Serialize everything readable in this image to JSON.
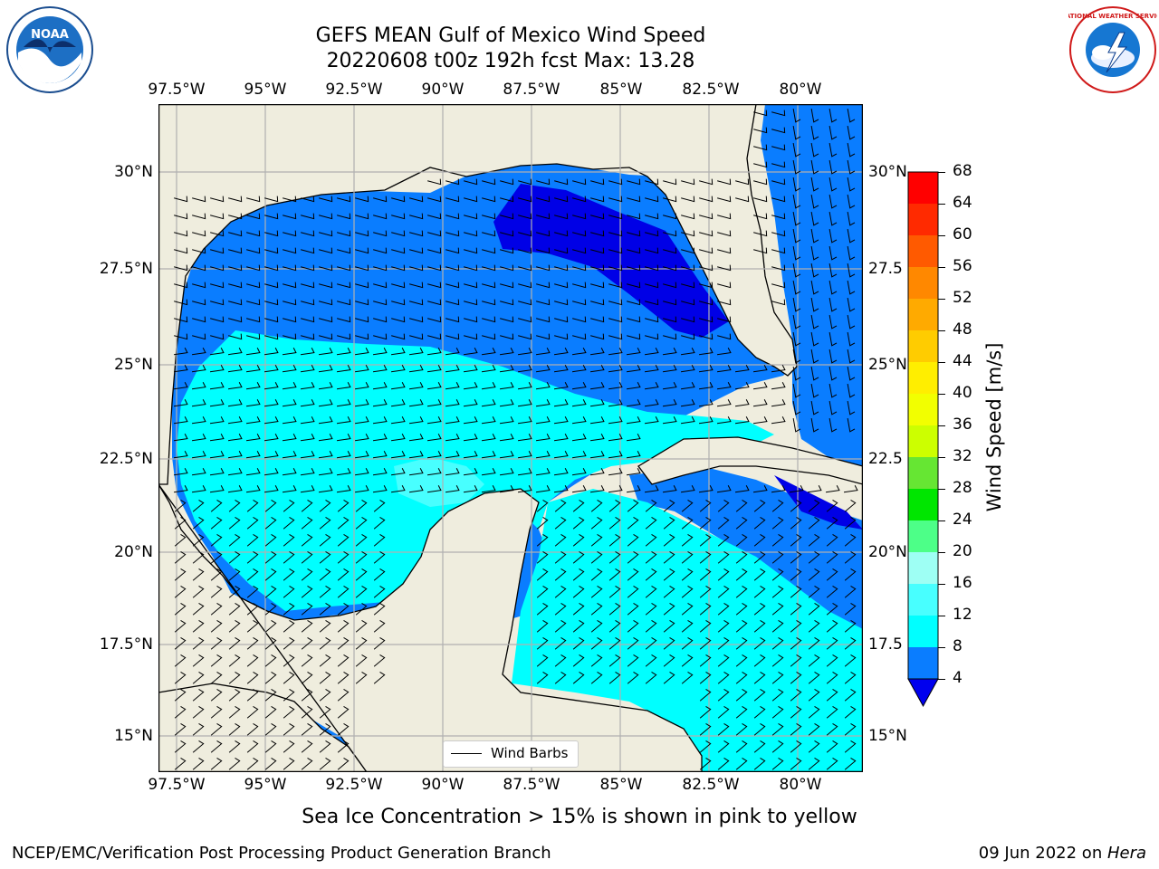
{
  "title": {
    "line1": "GEFS MEAN Gulf of Mexico Wind Speed",
    "line2": "20220608 t00z 192h fcst   Max: 13.28"
  },
  "logos": {
    "left_icon": "noaa-logo-icon",
    "left_text": "NOAA",
    "right_icon": "national-weather-service-logo-icon",
    "right_text": "NATIONAL WEATHER SERVICE"
  },
  "map": {
    "lon_ticks": [
      "97.5°W",
      "95°W",
      "92.5°W",
      "90°W",
      "87.5°W",
      "85°W",
      "82.5°W",
      "80°W"
    ],
    "lat_ticks_left": [
      "30°N",
      "27.5°N",
      "25°N",
      "22.5°N",
      "20°N",
      "17.5°N",
      "15°N"
    ],
    "lat_ticks_right": [
      "30°N",
      "27.5",
      "25°N",
      "22.5",
      "20°N",
      "17.5",
      "15°N"
    ],
    "land_color": "#efedde",
    "ocean_colors": {
      "band_4_8": "#0a7dff",
      "band_8_12": "#00ffff",
      "band_12_16": "#48ffff",
      "band_lt_4": "#0000e6",
      "band_low": "#1b4fe6"
    }
  },
  "legend": {
    "label": "Wind Barbs"
  },
  "colorbar": {
    "label": "Wind Speed [m/s]",
    "ticks": [
      "68",
      "64",
      "60",
      "56",
      "52",
      "48",
      "44",
      "40",
      "36",
      "32",
      "28",
      "24",
      "20",
      "16",
      "12",
      "8",
      "4"
    ],
    "colors": [
      "#ff0000",
      "#ff2a00",
      "#ff5a00",
      "#ff8800",
      "#ffaa00",
      "#ffcc00",
      "#ffee00",
      "#f2ff00",
      "#ddff00",
      "#ccff00",
      "#66e633",
      "#00e600",
      "#00ff77",
      "#4dff99",
      "#9efff4",
      "#48ffff",
      "#00ffff",
      "#0a7dff"
    ],
    "extend_color": "#0000ee"
  },
  "footnote": "Sea Ice Concentration > 15% is shown in pink to yellow",
  "credits": {
    "left": "NCEP/EMC/Verification Post Processing Product Generation Branch",
    "right_prefix": "09 Jun 2022 on ",
    "right_host": "Hera"
  }
}
